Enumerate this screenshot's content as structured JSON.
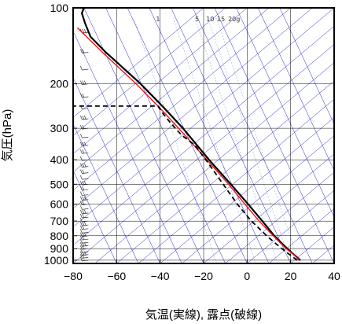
{
  "chart_data": {
    "type": "line",
    "title": "",
    "xlabel": "気温(実線), 露点(破線)",
    "ylabel": "気圧(hPa)",
    "xlim": [
      -80,
      40
    ],
    "ylim": [
      1030,
      100
    ],
    "y_scale": "log",
    "x_ticks": [
      "−80",
      "−60",
      "−40",
      "−20",
      "0",
      "20",
      "40"
    ],
    "y_ticks": [
      "100",
      "200",
      "300",
      "400",
      "500",
      "600",
      "700",
      "800",
      "900",
      "1000"
    ],
    "mixing_ratio_labels": [
      "1",
      "5",
      "10",
      "15",
      "20g"
    ],
    "grid": true,
    "colors": {
      "temperature": "#000000",
      "parcel": "#ee1111",
      "dewpoint": "#000000",
      "isotherm": "#2222cc",
      "grid": "#000000",
      "wind_barb": "#333333"
    },
    "series": [
      {
        "style": "solid",
        "points": [
          {
            "p": 1000,
            "t": 24.5
          },
          {
            "p": 950,
            "t": 21.5
          },
          {
            "p": 900,
            "t": 18.5
          },
          {
            "p": 850,
            "t": 15.5
          },
          {
            "p": 800,
            "t": 12.5
          },
          {
            "p": 700,
            "t": 7.0
          },
          {
            "p": 600,
            "t": 0.5
          },
          {
            "p": 500,
            "t": -7.5
          },
          {
            "p": 400,
            "t": -17.5
          },
          {
            "p": 300,
            "t": -29.5
          },
          {
            "p": 250,
            "t": -38.0
          },
          {
            "p": 200,
            "t": -49.0
          },
          {
            "p": 170,
            "t": -58.0
          },
          {
            "p": 150,
            "t": -65.0
          },
          {
            "p": 130,
            "t": -72.0
          },
          {
            "p": 115,
            "t": -74.5
          },
          {
            "p": 105,
            "t": -76.0
          },
          {
            "p": 100,
            "t": -75.0
          }
        ]
      },
      {
        "style": "solid-red",
        "points": [
          {
            "p": 1000,
            "t": 24.0
          },
          {
            "p": 950,
            "t": 21.5
          },
          {
            "p": 900,
            "t": 18.0
          },
          {
            "p": 850,
            "t": 15.0
          },
          {
            "p": 800,
            "t": 12.0
          },
          {
            "p": 700,
            "t": 5.5
          },
          {
            "p": 600,
            "t": -1.0
          },
          {
            "p": 500,
            "t": -8.5
          },
          {
            "p": 400,
            "t": -18.5
          },
          {
            "p": 300,
            "t": -31.5
          },
          {
            "p": 250,
            "t": -40.0
          },
          {
            "p": 200,
            "t": -51.0
          },
          {
            "p": 150,
            "t": -66.5
          },
          {
            "p": 120,
            "t": -78.0
          }
        ]
      },
      {
        "style": "dashed",
        "points": [
          {
            "p": 1000,
            "t": 23.0
          },
          {
            "p": 950,
            "t": 19.5
          },
          {
            "p": 900,
            "t": 16.0
          },
          {
            "p": 850,
            "t": 12.5
          },
          {
            "p": 800,
            "t": 9.0
          },
          {
            "p": 700,
            "t": 2.0
          },
          {
            "p": 600,
            "t": -4.5
          },
          {
            "p": 500,
            "t": -11.0
          },
          {
            "p": 400,
            "t": -19.0
          },
          {
            "p": 350,
            "t": -24.0
          },
          {
            "p": 320,
            "t": -30.0
          },
          {
            "p": 300,
            "t": -33.0
          },
          {
            "p": 280,
            "t": -36.0
          },
          {
            "p": 260,
            "t": -39.0
          },
          {
            "p": 245,
            "t": -41.0
          },
          {
            "p": 245,
            "t": -80.0
          }
        ]
      }
    ],
    "wind_barb_levels": [
      1000,
      975,
      950,
      925,
      900,
      875,
      850,
      825,
      800,
      775,
      750,
      725,
      700,
      675,
      650,
      625,
      600,
      575,
      550,
      525,
      500,
      475,
      450,
      425,
      400,
      375,
      350,
      325,
      300,
      275,
      250,
      225,
      200,
      175,
      150,
      125,
      100
    ]
  }
}
